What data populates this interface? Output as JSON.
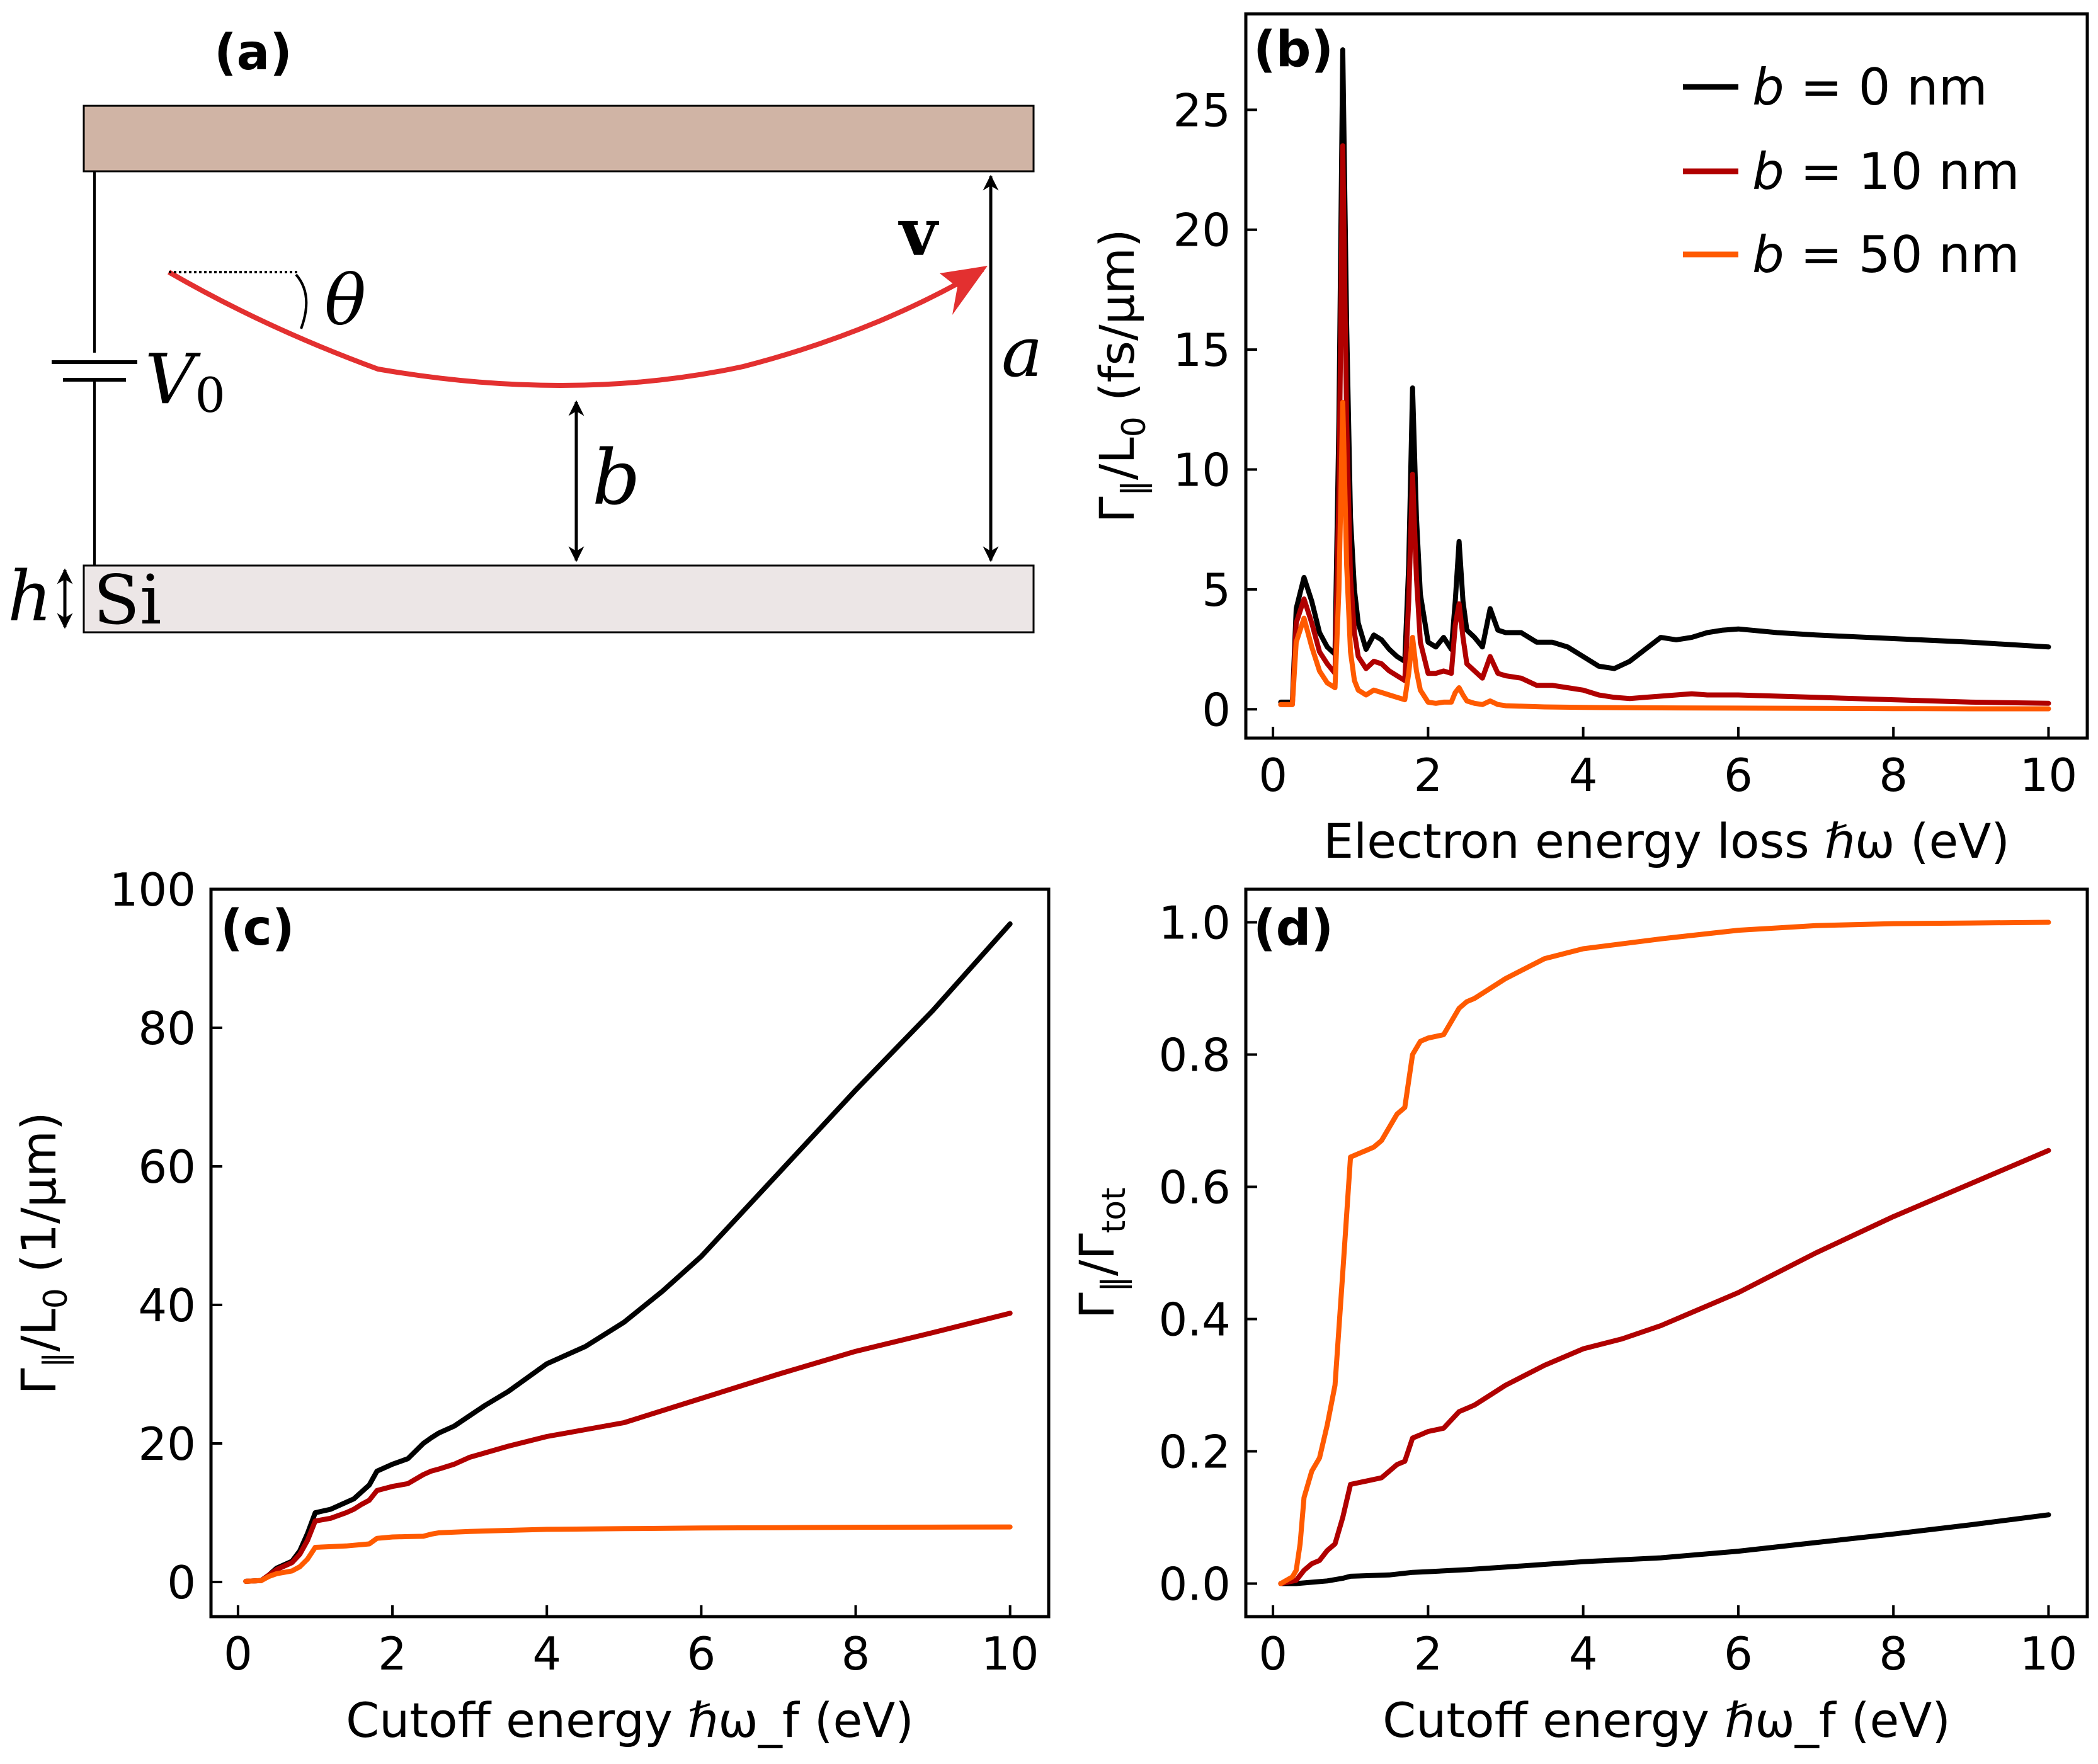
{
  "colors": {
    "b0": "#000000",
    "b10": "#b00000",
    "b50": "#ff5a00",
    "plate_top": "#d0b4a5",
    "plate_si": "#ece6e6",
    "trajectory": "#e33030"
  },
  "diagram": {
    "panel_label": "(a)",
    "velocity_label": "v",
    "angle_label": "θ",
    "voltage_label": "V",
    "voltage_subscript": "0",
    "a_label": "a",
    "b_label": "b",
    "h_label": "h",
    "si_label": "Si"
  },
  "legend": {
    "entries": [
      {
        "series_key": "b0",
        "prefix": "b",
        "suffix": " = 0 nm"
      },
      {
        "series_key": "b10",
        "prefix": "b",
        "suffix": " = 10 nm"
      },
      {
        "series_key": "b50",
        "prefix": "b",
        "suffix": " = 50 nm"
      }
    ]
  },
  "chart_data": [
    {
      "id": "b",
      "panel_label": "(b)",
      "type": "line",
      "xlabel": "Electron energy loss ℏω (eV)",
      "ylabel_parts": {
        "main": "Γ",
        "sub": "∥",
        "rest": "/L",
        "sub2": "0",
        "unit": " (fs/μm)"
      },
      "xlim": [
        -0.35,
        10.5
      ],
      "ylim": [
        -1.2,
        29
      ],
      "xticks": [
        0,
        2,
        4,
        6,
        8,
        10
      ],
      "yticks": [
        0,
        5,
        10,
        15,
        20,
        25
      ],
      "grid": false,
      "legend_position": "top-right",
      "series": [
        {
          "name": "b = 0 nm",
          "key": "b0",
          "x": [
            0.1,
            0.25,
            0.3,
            0.4,
            0.5,
            0.6,
            0.7,
            0.8,
            0.85,
            0.9,
            0.95,
            1.0,
            1.05,
            1.1,
            1.2,
            1.3,
            1.4,
            1.5,
            1.6,
            1.7,
            1.75,
            1.8,
            1.85,
            1.9,
            2.0,
            2.1,
            2.2,
            2.3,
            2.35,
            2.4,
            2.45,
            2.5,
            2.6,
            2.7,
            2.8,
            2.9,
            3.0,
            3.2,
            3.4,
            3.6,
            3.8,
            4.0,
            4.2,
            4.4,
            4.6,
            4.8,
            5.0,
            5.2,
            5.4,
            5.6,
            5.8,
            6.0,
            6.5,
            7.0,
            8.0,
            9.0,
            10.0
          ],
          "y": [
            0.3,
            0.3,
            4.2,
            5.5,
            4.5,
            3.2,
            2.6,
            2.3,
            12.0,
            27.5,
            16.0,
            8.0,
            5.0,
            3.6,
            2.5,
            3.1,
            2.9,
            2.5,
            2.2,
            2.0,
            6.0,
            13.4,
            8.0,
            4.8,
            2.8,
            2.6,
            3.0,
            2.5,
            4.5,
            7.0,
            4.5,
            3.3,
            3.0,
            2.6,
            4.2,
            3.3,
            3.2,
            3.2,
            2.8,
            2.8,
            2.6,
            2.2,
            1.8,
            1.7,
            2.0,
            2.5,
            3.0,
            2.9,
            3.0,
            3.2,
            3.3,
            3.35,
            3.2,
            3.1,
            2.95,
            2.8,
            2.6
          ]
        },
        {
          "name": "b = 10 nm",
          "key": "b10",
          "x": [
            0.1,
            0.25,
            0.3,
            0.4,
            0.5,
            0.6,
            0.7,
            0.8,
            0.85,
            0.9,
            0.95,
            1.0,
            1.05,
            1.1,
            1.2,
            1.3,
            1.4,
            1.5,
            1.6,
            1.7,
            1.75,
            1.8,
            1.85,
            1.9,
            2.0,
            2.1,
            2.2,
            2.3,
            2.35,
            2.4,
            2.45,
            2.5,
            2.6,
            2.7,
            2.8,
            2.9,
            3.0,
            3.2,
            3.4,
            3.6,
            3.8,
            4.0,
            4.2,
            4.4,
            4.6,
            4.8,
            5.0,
            5.2,
            5.4,
            5.6,
            6.0,
            6.5,
            7.0,
            8.0,
            9.0,
            10.0
          ],
          "y": [
            0.2,
            0.2,
            3.6,
            4.6,
            3.6,
            2.4,
            1.9,
            1.5,
            9.0,
            23.5,
            12.0,
            5.5,
            3.2,
            2.2,
            1.7,
            2.0,
            1.9,
            1.6,
            1.4,
            1.2,
            4.5,
            9.8,
            5.5,
            2.8,
            1.5,
            1.5,
            1.6,
            1.5,
            3.5,
            4.4,
            3.0,
            1.9,
            1.6,
            1.3,
            2.2,
            1.5,
            1.4,
            1.3,
            1.0,
            1.0,
            0.9,
            0.8,
            0.6,
            0.5,
            0.45,
            0.5,
            0.55,
            0.6,
            0.65,
            0.6,
            0.6,
            0.55,
            0.5,
            0.4,
            0.3,
            0.25
          ]
        },
        {
          "name": "b = 50 nm",
          "key": "b50",
          "x": [
            0.1,
            0.25,
            0.3,
            0.4,
            0.5,
            0.6,
            0.7,
            0.8,
            0.85,
            0.9,
            0.95,
            1.0,
            1.05,
            1.1,
            1.2,
            1.3,
            1.4,
            1.5,
            1.6,
            1.7,
            1.75,
            1.8,
            1.85,
            1.9,
            2.0,
            2.1,
            2.2,
            2.3,
            2.35,
            2.4,
            2.45,
            2.5,
            2.6,
            2.7,
            2.8,
            2.9,
            3.0,
            3.5,
            4.0,
            5.0,
            6.0,
            7.0,
            8.0,
            9.0,
            10.0
          ],
          "y": [
            0.2,
            0.2,
            2.8,
            3.8,
            2.6,
            1.6,
            1.1,
            0.9,
            5.0,
            12.8,
            6.0,
            2.4,
            1.2,
            0.8,
            0.6,
            0.8,
            0.7,
            0.6,
            0.5,
            0.4,
            1.5,
            3.0,
            1.6,
            0.8,
            0.3,
            0.25,
            0.3,
            0.3,
            0.7,
            0.9,
            0.6,
            0.35,
            0.25,
            0.2,
            0.35,
            0.2,
            0.15,
            0.1,
            0.08,
            0.06,
            0.05,
            0.04,
            0.03,
            0.02,
            0.02
          ]
        }
      ]
    },
    {
      "id": "c",
      "panel_label": "(c)",
      "type": "line",
      "xlabel": "Cutoff energy ℏω_f (eV)",
      "ylabel_parts": {
        "main": "Γ",
        "sub": "∥",
        "rest": "/L",
        "sub2": "0",
        "unit": " (1/μm)"
      },
      "xlim": [
        -0.35,
        10.5
      ],
      "ylim": [
        -5,
        100
      ],
      "xticks": [
        0,
        2,
        4,
        6,
        8,
        10
      ],
      "yticks": [
        0,
        20,
        40,
        60,
        80,
        100
      ],
      "grid": false,
      "series": [
        {
          "name": "b = 0 nm",
          "key": "b0",
          "x": [
            0.1,
            0.3,
            0.4,
            0.5,
            0.7,
            0.8,
            0.9,
            1.0,
            1.2,
            1.4,
            1.5,
            1.6,
            1.7,
            1.8,
            1.9,
            2.0,
            2.2,
            2.4,
            2.5,
            2.6,
            2.8,
            3.0,
            3.2,
            3.5,
            4.0,
            4.5,
            5.0,
            5.5,
            6.0,
            7.0,
            8.0,
            9.0,
            10.0
          ],
          "y": [
            0.1,
            0.2,
            1.0,
            2.0,
            3.0,
            4.5,
            7.0,
            10.0,
            10.5,
            11.5,
            12.0,
            13.0,
            14.0,
            16.0,
            16.5,
            17.0,
            17.8,
            20.0,
            20.8,
            21.5,
            22.5,
            24.0,
            25.5,
            27.5,
            31.5,
            34.0,
            37.5,
            42.0,
            47.0,
            59.0,
            71.0,
            82.5,
            95.0
          ]
        },
        {
          "name": "b = 10 nm",
          "key": "b10",
          "x": [
            0.1,
            0.3,
            0.4,
            0.5,
            0.7,
            0.8,
            0.9,
            1.0,
            1.2,
            1.4,
            1.5,
            1.6,
            1.7,
            1.8,
            1.9,
            2.0,
            2.2,
            2.4,
            2.5,
            2.6,
            2.8,
            3.0,
            3.5,
            4.0,
            4.5,
            5.0,
            6.0,
            7.0,
            8.0,
            9.0,
            10.0
          ],
          "y": [
            0.1,
            0.2,
            1.0,
            1.8,
            2.8,
            4.0,
            6.0,
            8.8,
            9.2,
            10.0,
            10.5,
            11.2,
            11.8,
            13.2,
            13.5,
            13.8,
            14.2,
            15.5,
            16.0,
            16.3,
            17.0,
            18.0,
            19.6,
            21.0,
            22.0,
            23.0,
            26.5,
            30.0,
            33.3,
            36.0,
            38.8
          ]
        },
        {
          "name": "b = 50 nm",
          "key": "b50",
          "x": [
            0.1,
            0.3,
            0.4,
            0.5,
            0.7,
            0.8,
            0.9,
            1.0,
            1.2,
            1.4,
            1.5,
            1.6,
            1.7,
            1.8,
            1.9,
            2.0,
            2.2,
            2.4,
            2.5,
            2.6,
            3.0,
            4.0,
            5.0,
            6.0,
            7.0,
            8.0,
            9.0,
            10.0
          ],
          "y": [
            0.1,
            0.2,
            0.8,
            1.2,
            1.6,
            2.2,
            3.3,
            5.0,
            5.1,
            5.2,
            5.3,
            5.4,
            5.5,
            6.3,
            6.4,
            6.5,
            6.55,
            6.6,
            6.9,
            7.1,
            7.3,
            7.6,
            7.7,
            7.8,
            7.85,
            7.9,
            7.92,
            7.95
          ]
        }
      ]
    },
    {
      "id": "d",
      "panel_label": "(d)",
      "type": "line",
      "xlabel": "Cutoff energy ℏω_f (eV)",
      "ylabel_parts": {
        "main": "Γ",
        "sub": "∥",
        "rest": "/Γ",
        "sub2": "tot",
        "unit": ""
      },
      "xlim": [
        -0.35,
        10.5
      ],
      "ylim": [
        -0.05,
        1.05
      ],
      "xticks": [
        0,
        2,
        4,
        6,
        8,
        10
      ],
      "yticks": [
        0.0,
        0.2,
        0.4,
        0.6,
        0.8,
        1.0
      ],
      "ytick_labels": [
        "0.0",
        "0.2",
        "0.4",
        "0.6",
        "0.8",
        "1.0"
      ],
      "grid": false,
      "series": [
        {
          "name": "b = 0 nm",
          "key": "b0",
          "x": [
            0.1,
            0.3,
            0.5,
            0.7,
            0.9,
            1.0,
            1.5,
            1.8,
            2.0,
            2.5,
            3.0,
            4.0,
            5.0,
            6.0,
            7.0,
            8.0,
            9.0,
            10.0
          ],
          "y": [
            0.0,
            0.0,
            0.002,
            0.004,
            0.008,
            0.011,
            0.013,
            0.017,
            0.018,
            0.021,
            0.025,
            0.033,
            0.039,
            0.049,
            0.062,
            0.075,
            0.089,
            0.104
          ]
        },
        {
          "name": "b = 10 nm",
          "key": "b10",
          "x": [
            0.1,
            0.3,
            0.4,
            0.5,
            0.6,
            0.7,
            0.8,
            0.9,
            1.0,
            1.2,
            1.4,
            1.5,
            1.6,
            1.7,
            1.8,
            1.9,
            2.0,
            2.2,
            2.4,
            2.5,
            2.6,
            2.8,
            3.0,
            3.5,
            4.0,
            4.5,
            5.0,
            6.0,
            7.0,
            8.0,
            9.0,
            10.0
          ],
          "y": [
            0.0,
            0.005,
            0.02,
            0.03,
            0.035,
            0.05,
            0.06,
            0.1,
            0.15,
            0.155,
            0.16,
            0.17,
            0.18,
            0.185,
            0.22,
            0.225,
            0.23,
            0.235,
            0.26,
            0.265,
            0.27,
            0.285,
            0.3,
            0.33,
            0.355,
            0.37,
            0.39,
            0.44,
            0.5,
            0.555,
            0.605,
            0.655
          ]
        },
        {
          "name": "b = 50 nm",
          "key": "b50",
          "x": [
            0.1,
            0.25,
            0.3,
            0.35,
            0.4,
            0.5,
            0.6,
            0.7,
            0.8,
            0.9,
            1.0,
            1.1,
            1.2,
            1.3,
            1.4,
            1.5,
            1.6,
            1.7,
            1.8,
            1.9,
            2.0,
            2.2,
            2.4,
            2.5,
            2.6,
            2.8,
            3.0,
            3.5,
            4.0,
            5.0,
            6.0,
            7.0,
            8.0,
            9.0,
            10.0
          ],
          "y": [
            0.0,
            0.01,
            0.02,
            0.06,
            0.13,
            0.17,
            0.19,
            0.24,
            0.3,
            0.47,
            0.645,
            0.65,
            0.655,
            0.66,
            0.67,
            0.69,
            0.71,
            0.72,
            0.8,
            0.82,
            0.825,
            0.83,
            0.87,
            0.88,
            0.885,
            0.9,
            0.915,
            0.945,
            0.96,
            0.975,
            0.988,
            0.995,
            0.998,
            0.999,
            1.0
          ]
        }
      ]
    }
  ]
}
